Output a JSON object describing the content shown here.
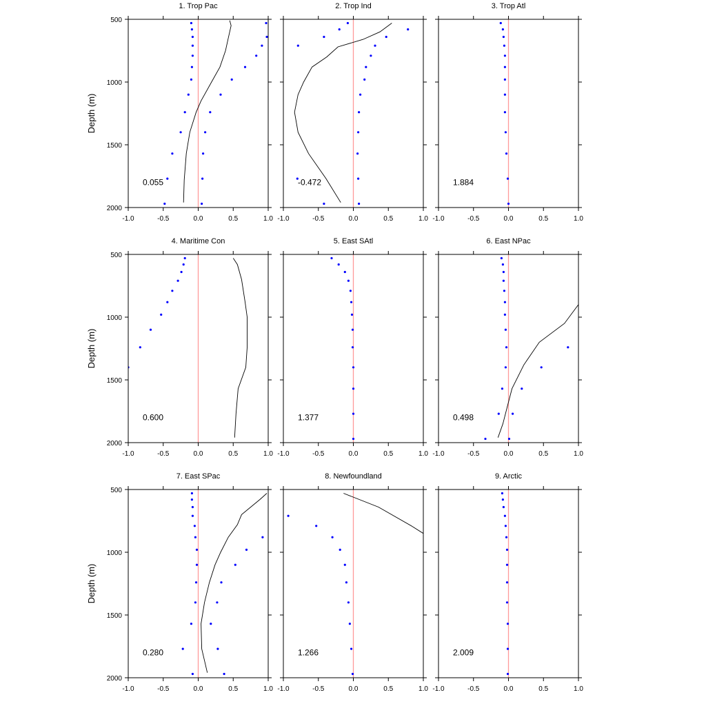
{
  "ylabel": "Depth (m)",
  "colors": {
    "line": "#000000",
    "points": "#0000ff",
    "zero_line": "#ff9999"
  },
  "axes": {
    "xlim": [
      -1.0,
      1.0
    ],
    "ylim": [
      500,
      2000
    ],
    "y_inverted": true,
    "xtick_values": [
      -1.0,
      -0.5,
      0.0,
      0.5,
      1.0
    ],
    "xtick_labels": [
      "-1.0",
      "-0.5",
      "0.0",
      "0.5",
      "1.0"
    ],
    "ytick_values": [
      500,
      1000,
      1500,
      2000
    ],
    "ytick_labels": [
      "500",
      "1000",
      "1500",
      "2000"
    ]
  },
  "chart_data": [
    {
      "type": "line+scatter",
      "title": "1. Trop Pac",
      "annotation": "0.055",
      "line": [
        [
          0.45,
          510
        ],
        [
          0.47,
          550
        ],
        [
          0.43,
          650
        ],
        [
          0.39,
          750
        ],
        [
          0.31,
          880
        ],
        [
          0.19,
          1000
        ],
        [
          0.04,
          1150
        ],
        [
          -0.03,
          1240
        ],
        [
          -0.12,
          1400
        ],
        [
          -0.17,
          1570
        ],
        [
          -0.2,
          1780
        ],
        [
          -0.21,
          1960
        ]
      ],
      "points": [
        [
          -0.1,
          530
        ],
        [
          -0.09,
          580
        ],
        [
          -0.08,
          640
        ],
        [
          -0.08,
          710
        ],
        [
          -0.08,
          790
        ],
        [
          -0.09,
          880
        ],
        [
          -0.1,
          980
        ],
        [
          -0.14,
          1100
        ],
        [
          -0.19,
          1240
        ],
        [
          -0.25,
          1400
        ],
        [
          -0.37,
          1570
        ],
        [
          -0.44,
          1770
        ],
        [
          -0.48,
          1970
        ],
        [
          0.97,
          530
        ],
        [
          0.98,
          640
        ],
        [
          0.91,
          710
        ],
        [
          0.83,
          790
        ],
        [
          0.67,
          880
        ],
        [
          0.48,
          980
        ],
        [
          0.32,
          1100
        ],
        [
          0.17,
          1240
        ],
        [
          0.1,
          1400
        ],
        [
          0.07,
          1570
        ],
        [
          0.06,
          1770
        ],
        [
          0.05,
          1970
        ]
      ]
    },
    {
      "type": "line+scatter",
      "title": "2. Trop Ind",
      "annotation": "-0.472",
      "line": [
        [
          0.55,
          530
        ],
        [
          0.38,
          600
        ],
        [
          0.14,
          660
        ],
        [
          -0.22,
          720
        ],
        [
          -0.38,
          800
        ],
        [
          -0.59,
          880
        ],
        [
          -0.71,
          1000
        ],
        [
          -0.79,
          1100
        ],
        [
          -0.84,
          1240
        ],
        [
          -0.79,
          1400
        ],
        [
          -0.64,
          1570
        ],
        [
          -0.39,
          1770
        ],
        [
          -0.18,
          1960
        ]
      ],
      "points": [
        [
          -0.08,
          530
        ],
        [
          -0.2,
          580
        ],
        [
          -0.42,
          640
        ],
        [
          -0.79,
          710
        ],
        [
          -0.8,
          1770
        ],
        [
          -0.42,
          1970
        ],
        [
          0.78,
          580
        ],
        [
          0.47,
          640
        ],
        [
          0.31,
          710
        ],
        [
          0.25,
          790
        ],
        [
          0.18,
          880
        ],
        [
          0.16,
          980
        ],
        [
          0.1,
          1100
        ],
        [
          0.08,
          1240
        ],
        [
          0.07,
          1400
        ],
        [
          0.06,
          1570
        ],
        [
          0.07,
          1770
        ],
        [
          0.08,
          1970
        ]
      ]
    },
    {
      "type": "line+scatter",
      "title": "3. Trop Atl",
      "annotation": "1.884",
      "line": [],
      "points": [
        [
          -0.11,
          530
        ],
        [
          -0.08,
          580
        ],
        [
          -0.07,
          640
        ],
        [
          -0.06,
          710
        ],
        [
          -0.05,
          790
        ],
        [
          -0.05,
          880
        ],
        [
          -0.05,
          980
        ],
        [
          -0.05,
          1100
        ],
        [
          -0.05,
          1240
        ],
        [
          -0.04,
          1400
        ],
        [
          -0.03,
          1570
        ],
        [
          -0.01,
          1770
        ],
        [
          0.0,
          1970
        ]
      ]
    },
    {
      "type": "line+scatter",
      "title": "4. Maritime Con",
      "annotation": "0.600",
      "line": [
        [
          0.5,
          530
        ],
        [
          0.56,
          580
        ],
        [
          0.62,
          700
        ],
        [
          0.67,
          880
        ],
        [
          0.7,
          1000
        ],
        [
          0.7,
          1100
        ],
        [
          0.7,
          1240
        ],
        [
          0.68,
          1400
        ],
        [
          0.57,
          1570
        ],
        [
          0.54,
          1770
        ],
        [
          0.52,
          1960
        ]
      ],
      "points": [
        [
          -0.19,
          530
        ],
        [
          -0.21,
          580
        ],
        [
          -0.24,
          640
        ],
        [
          -0.29,
          710
        ],
        [
          -0.37,
          790
        ],
        [
          -0.44,
          880
        ],
        [
          -0.53,
          980
        ],
        [
          -0.68,
          1100
        ],
        [
          -0.83,
          1240
        ],
        [
          -1.0,
          1400
        ]
      ]
    },
    {
      "type": "line+scatter",
      "title": "5. East SAtl",
      "annotation": "1.377",
      "line": [],
      "points": [
        [
          -0.31,
          530
        ],
        [
          -0.21,
          580
        ],
        [
          -0.12,
          640
        ],
        [
          -0.07,
          710
        ],
        [
          -0.04,
          790
        ],
        [
          -0.03,
          880
        ],
        [
          -0.02,
          980
        ],
        [
          -0.01,
          1100
        ],
        [
          -0.01,
          1240
        ],
        [
          0.0,
          1400
        ],
        [
          0.0,
          1570
        ],
        [
          0.0,
          1770
        ],
        [
          0.0,
          1970
        ]
      ]
    },
    {
      "type": "line+scatter",
      "title": "6. East NPac",
      "annotation": "0.498",
      "line": [
        [
          1.0,
          900
        ],
        [
          0.8,
          1050
        ],
        [
          0.44,
          1200
        ],
        [
          0.22,
          1380
        ],
        [
          0.05,
          1570
        ],
        [
          -0.02,
          1720
        ],
        [
          -0.08,
          1850
        ],
        [
          -0.15,
          1960
        ]
      ],
      "points": [
        [
          -0.1,
          530
        ],
        [
          -0.08,
          580
        ],
        [
          -0.07,
          640
        ],
        [
          -0.07,
          710
        ],
        [
          -0.06,
          790
        ],
        [
          -0.05,
          880
        ],
        [
          -0.05,
          980
        ],
        [
          -0.04,
          1100
        ],
        [
          -0.03,
          1240
        ],
        [
          -0.04,
          1400
        ],
        [
          -0.09,
          1570
        ],
        [
          -0.14,
          1770
        ],
        [
          -0.33,
          1970
        ],
        [
          0.85,
          1240
        ],
        [
          0.47,
          1400
        ],
        [
          0.19,
          1570
        ],
        [
          0.06,
          1770
        ],
        [
          0.01,
          1970
        ]
      ]
    },
    {
      "type": "line+scatter",
      "title": "7. East SPac",
      "annotation": "0.280",
      "line": [
        [
          0.98,
          530
        ],
        [
          0.88,
          580
        ],
        [
          0.62,
          700
        ],
        [
          0.56,
          780
        ],
        [
          0.43,
          880
        ],
        [
          0.32,
          1000
        ],
        [
          0.24,
          1100
        ],
        [
          0.16,
          1240
        ],
        [
          0.09,
          1400
        ],
        [
          0.04,
          1570
        ],
        [
          0.05,
          1770
        ],
        [
          0.13,
          1960
        ]
      ],
      "points": [
        [
          -0.09,
          530
        ],
        [
          -0.09,
          580
        ],
        [
          -0.08,
          640
        ],
        [
          -0.08,
          710
        ],
        [
          -0.05,
          790
        ],
        [
          -0.04,
          880
        ],
        [
          -0.02,
          980
        ],
        [
          -0.02,
          1100
        ],
        [
          -0.03,
          1240
        ],
        [
          -0.04,
          1400
        ],
        [
          -0.1,
          1570
        ],
        [
          -0.22,
          1770
        ],
        [
          -0.08,
          1970
        ],
        [
          0.92,
          880
        ],
        [
          0.69,
          980
        ],
        [
          0.53,
          1100
        ],
        [
          0.33,
          1240
        ],
        [
          0.27,
          1400
        ],
        [
          0.18,
          1570
        ],
        [
          0.28,
          1770
        ],
        [
          0.37,
          1970
        ]
      ]
    },
    {
      "type": "line+scatter",
      "title": "8. Newfoundland",
      "annotation": "1.266",
      "line": [
        [
          -0.14,
          530
        ],
        [
          0.36,
          640
        ],
        [
          0.83,
          790
        ],
        [
          1.0,
          850
        ]
      ],
      "points": [
        [
          -0.93,
          710
        ],
        [
          -0.53,
          790
        ],
        [
          -0.3,
          880
        ],
        [
          -0.19,
          980
        ],
        [
          -0.12,
          1100
        ],
        [
          -0.1,
          1240
        ],
        [
          -0.07,
          1400
        ],
        [
          -0.05,
          1570
        ],
        [
          -0.03,
          1770
        ],
        [
          -0.01,
          1970
        ]
      ]
    },
    {
      "type": "line+scatter",
      "title": "9. Arctic",
      "annotation": "2.009",
      "line": [],
      "points": [
        [
          -0.09,
          530
        ],
        [
          -0.08,
          580
        ],
        [
          -0.07,
          640
        ],
        [
          -0.05,
          710
        ],
        [
          -0.04,
          790
        ],
        [
          -0.03,
          880
        ],
        [
          -0.02,
          980
        ],
        [
          -0.02,
          1100
        ],
        [
          -0.02,
          1240
        ],
        [
          -0.02,
          1400
        ],
        [
          -0.01,
          1570
        ],
        [
          -0.01,
          1770
        ],
        [
          -0.01,
          1970
        ]
      ]
    }
  ]
}
